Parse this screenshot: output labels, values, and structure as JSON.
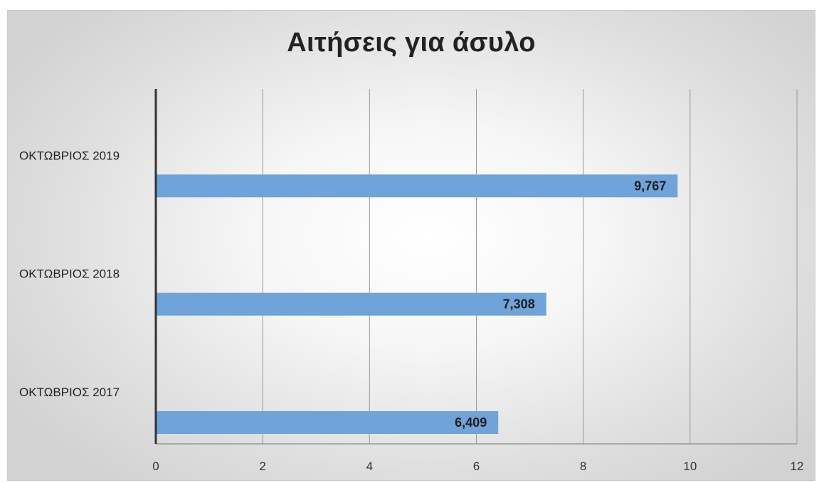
{
  "chart_data": {
    "type": "bar",
    "orientation": "horizontal",
    "title": "Αιτήσεις για άσυλο",
    "categories": [
      "ΟΚΤΩΒΡΙΟΣ 2017",
      "ΟΚΤΩΒΡΙΟΣ 2018",
      "ΟΚΤΩΒΡΙΟΣ 2019"
    ],
    "values": [
      6.409,
      7.308,
      9.767
    ],
    "data_labels": [
      "6,409",
      "7,308",
      "9,767"
    ],
    "xlim": [
      0,
      12
    ],
    "x_ticks": [
      "0",
      "2",
      "4",
      "6",
      "8",
      "10",
      "12"
    ],
    "grid": true,
    "legend": "none",
    "bar_color": "#6fa3d9"
  }
}
